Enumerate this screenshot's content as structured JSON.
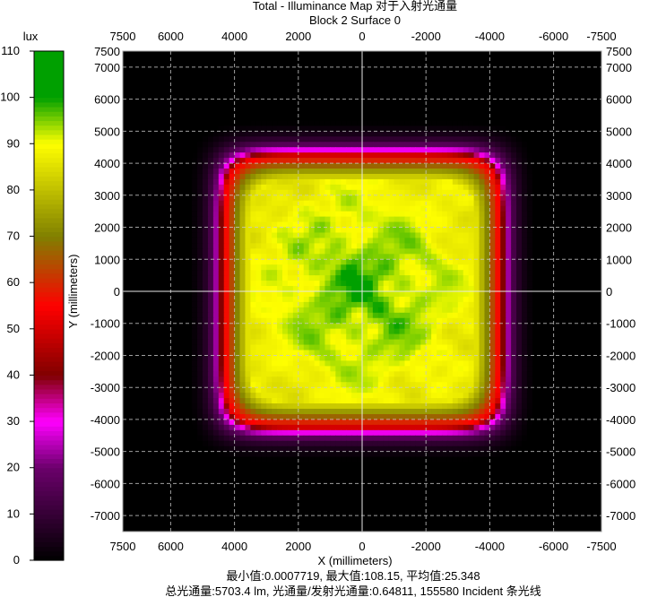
{
  "chart_data": {
    "type": "heatmap",
    "title": "Total - Illuminance Map 对于入射光通量",
    "subtitle": "Block 2 Surface 0",
    "xlabel": "X (millimeters)",
    "ylabel": "Y (millimeters)",
    "xlim": [
      7500,
      -7500
    ],
    "ylim": [
      -7500,
      7500
    ],
    "x_ticks": [
      "7500",
      "6000",
      "4000",
      "2000",
      "0",
      "-2000",
      "-4000",
      "-6000",
      "-7500"
    ],
    "x_tick_values": [
      7500,
      6000,
      4000,
      2000,
      0,
      -2000,
      -4000,
      -6000,
      -7500
    ],
    "y_ticks": [
      "7500",
      "7000",
      "6000",
      "5000",
      "4000",
      "3000",
      "2000",
      "1000",
      "0",
      "-1000",
      "-2000",
      "-3000",
      "-4000",
      "-5000",
      "-6000",
      "-7000"
    ],
    "y_tick_values": [
      7500,
      7000,
      6000,
      5000,
      4000,
      3000,
      2000,
      1000,
      0,
      -1000,
      -2000,
      -3000,
      -4000,
      -5000,
      -6000,
      -7000
    ],
    "grid": true,
    "colorbar": {
      "unit": "lux",
      "range": [
        0,
        110
      ],
      "ticks": [
        "110",
        "100",
        "90",
        "80",
        "70",
        "60",
        "50",
        "40",
        "30",
        "20",
        "10",
        "0"
      ],
      "tick_values": [
        110,
        100,
        90,
        80,
        70,
        60,
        50,
        40,
        30,
        20,
        10,
        0
      ],
      "colors": [
        {
          "value": 0,
          "color": "#000000"
        },
        {
          "value": 20,
          "color": "#6b006b"
        },
        {
          "value": 30,
          "color": "#ff00ff"
        },
        {
          "value": 40,
          "color": "#800000"
        },
        {
          "value": 55,
          "color": "#ff0000"
        },
        {
          "value": 70,
          "color": "#808000"
        },
        {
          "value": 90,
          "color": "#ffff00"
        },
        {
          "value": 100,
          "color": "#00a000"
        },
        {
          "value": 110,
          "color": "#00a000"
        }
      ]
    },
    "field": {
      "half_width_x": 4350,
      "half_width_y": 4250,
      "peak": 102
    },
    "stats_line1": "最小值:0.0007719, 最大值:108.15, 平均值:25.348",
    "stats_line2": "总光通量:5703.4 lm, 光通量/发射光通量:0.64811, 155580 Incident 条光线"
  }
}
